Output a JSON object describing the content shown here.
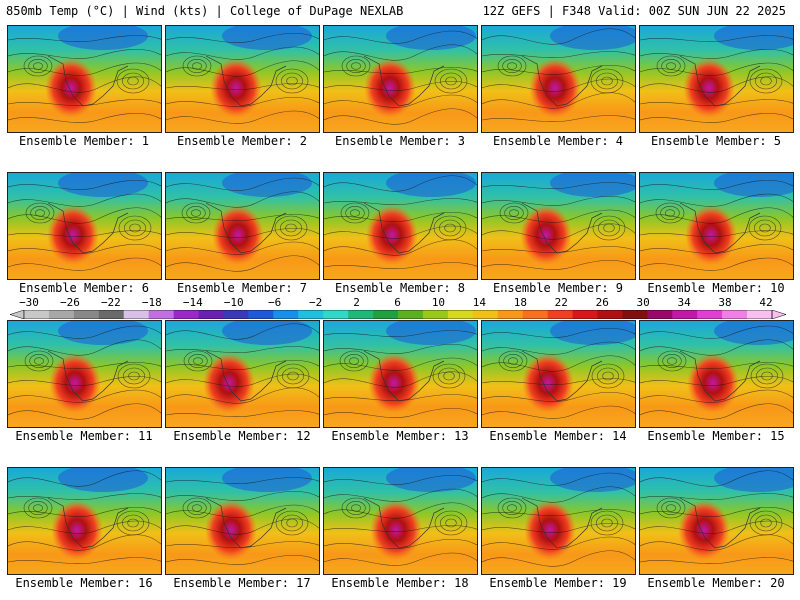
{
  "header": {
    "left": "850mb Temp (°C) | Wind (kts) | College of DuPage NEXLAB",
    "right": "12Z GEFS | F348 Valid: 00Z SUN JUN 22 2025"
  },
  "colorbar": {
    "labels": [
      "−30",
      "−26",
      "−22",
      "−18",
      "−14",
      "−10",
      "−6",
      "−2",
      "2",
      "6",
      "10",
      "14",
      "18",
      "22",
      "26",
      "30",
      "34",
      "38",
      "42"
    ],
    "colors": [
      "#c8c8c8",
      "#a8a8a8",
      "#888888",
      "#6a6a6a",
      "#d8c0e8",
      "#c070e0",
      "#9a28c8",
      "#6a20b0",
      "#3a3ab8",
      "#1e5ad8",
      "#1890e8",
      "#20c0e0",
      "#30d8c8",
      "#20b878",
      "#22a040",
      "#5ab020",
      "#98c818",
      "#d8d820",
      "#f0c018",
      "#f89818",
      "#f87020",
      "#f04020",
      "#d81818",
      "#b01010",
      "#801010",
      "#980868",
      "#c018a8",
      "#e040d0",
      "#f080e8",
      "#f8c0f0"
    ]
  },
  "members": [
    {
      "label": "Ensemble Member: 1"
    },
    {
      "label": "Ensemble Member: 2"
    },
    {
      "label": "Ensemble Member: 3"
    },
    {
      "label": "Ensemble Member: 4"
    },
    {
      "label": "Ensemble Member: 5"
    },
    {
      "label": "Ensemble Member: 6"
    },
    {
      "label": "Ensemble Member: 7"
    },
    {
      "label": "Ensemble Member: 8"
    },
    {
      "label": "Ensemble Member: 9"
    },
    {
      "label": "Ensemble Member: 10"
    },
    {
      "label": "Ensemble Member: 11"
    },
    {
      "label": "Ensemble Member: 12"
    },
    {
      "label": "Ensemble Member: 13"
    },
    {
      "label": "Ensemble Member: 14"
    },
    {
      "label": "Ensemble Member: 15"
    },
    {
      "label": "Ensemble Member: 16"
    },
    {
      "label": "Ensemble Member: 17"
    },
    {
      "label": "Ensemble Member: 18"
    },
    {
      "label": "Ensemble Member: 19"
    },
    {
      "label": "Ensemble Member: 20"
    }
  ]
}
